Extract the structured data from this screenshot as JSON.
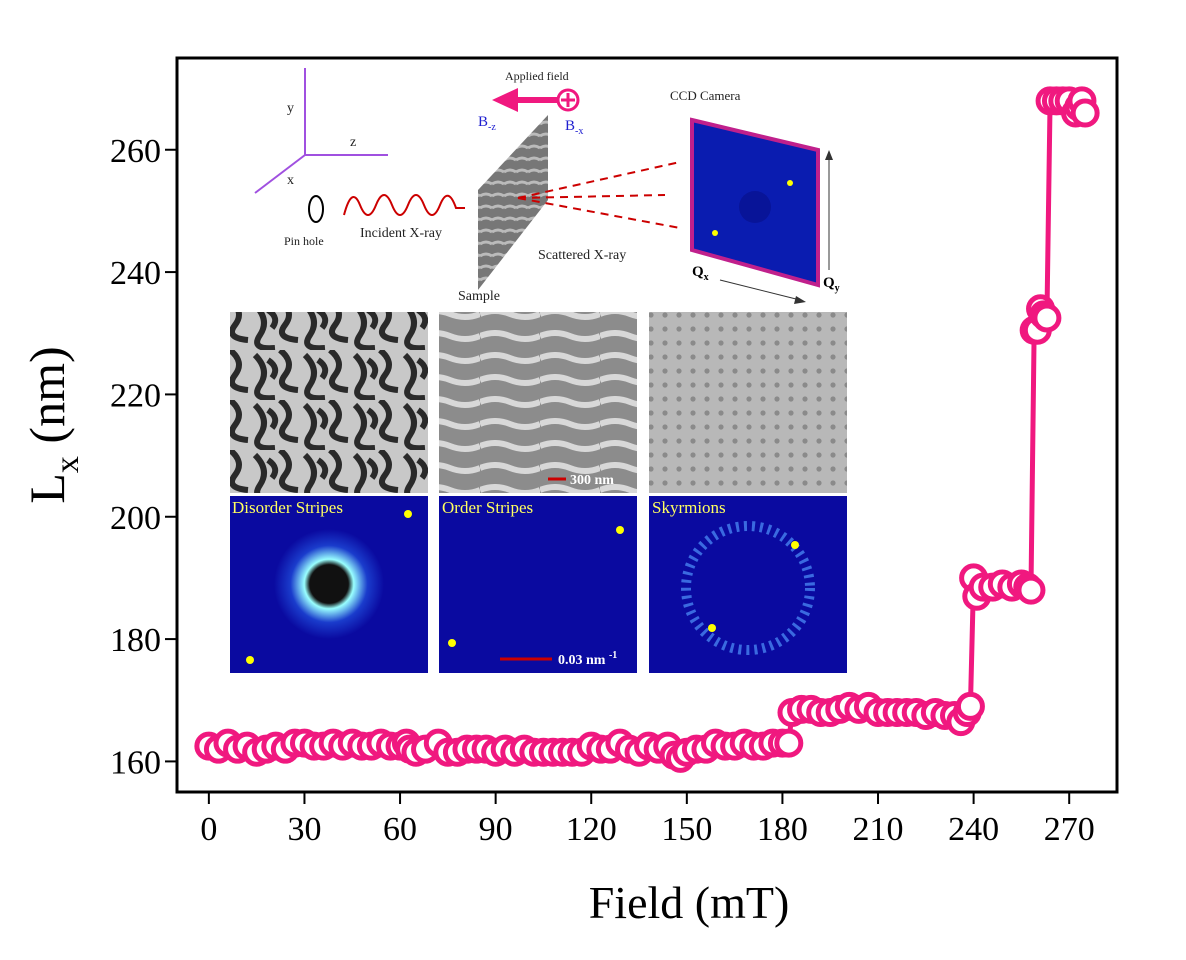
{
  "chart_data": {
    "type": "line",
    "x_label": "Field (mT)",
    "y_label": {
      "main": "L",
      "sub": "x",
      "unit": " (nm)"
    },
    "x": [
      0,
      3,
      6,
      9,
      12,
      15,
      18,
      21,
      24,
      27,
      30,
      33,
      36,
      39,
      42,
      45,
      48,
      51,
      54,
      57,
      60,
      62,
      63,
      65,
      68,
      72,
      75,
      78,
      81,
      84,
      87,
      90,
      93,
      96,
      99,
      102,
      105,
      108,
      111,
      114,
      117,
      120,
      123,
      126,
      129,
      132,
      135,
      138,
      141,
      144,
      146,
      148,
      150,
      153,
      156,
      159,
      162,
      165,
      168,
      171,
      174,
      177,
      180,
      182,
      183,
      186,
      189,
      192,
      195,
      198,
      201,
      204,
      207,
      210,
      213,
      216,
      219,
      222,
      225,
      228,
      231,
      234,
      236,
      238,
      239,
      240,
      241,
      243,
      246,
      249,
      252,
      255,
      257,
      258,
      259,
      260,
      261,
      262,
      263,
      264,
      266,
      268,
      270,
      272,
      273,
      274,
      275
    ],
    "series": [
      {
        "color": "#f0187f",
        "values": [
          162.5,
          162,
          163,
          162,
          162.5,
          161.5,
          162,
          162.5,
          162,
          163,
          163,
          162.5,
          162.5,
          163,
          162.5,
          163,
          162.5,
          162.5,
          163,
          162.5,
          162.5,
          163,
          162,
          161.5,
          162,
          163,
          161.5,
          161.5,
          162,
          162,
          162,
          161.5,
          162,
          161.5,
          162,
          161.5,
          161.5,
          161.5,
          161.5,
          161.5,
          161.5,
          162.5,
          162,
          162,
          163,
          162,
          161.5,
          162.5,
          162,
          162.5,
          161,
          160.5,
          161.5,
          162,
          162,
          163,
          162.5,
          162.5,
          163,
          162.5,
          162.5,
          163,
          163,
          163,
          168,
          168.5,
          168.5,
          168,
          168,
          168.5,
          169,
          168.5,
          169,
          168,
          168,
          168,
          168,
          168,
          167.5,
          168,
          167.5,
          167.5,
          166.5,
          168,
          169,
          190,
          187,
          188.5,
          188.5,
          189,
          188.5,
          189,
          188.5,
          188,
          230.5,
          230.5,
          234,
          233,
          232.5,
          268,
          268,
          268,
          268,
          266,
          267,
          268,
          266
        ]
      }
    ],
    "xlim": [
      -10,
      285
    ],
    "ylim": [
      155,
      275
    ],
    "xticks": [
      0,
      30,
      60,
      90,
      120,
      150,
      180,
      210,
      240,
      270
    ],
    "yticks": [
      160,
      180,
      200,
      220,
      240,
      260
    ],
    "annotations": [
      "y",
      "z",
      "x",
      "Pin hole",
      "Incident  X-ray",
      "Applied field",
      {
        "text": "B",
        "sub": "-z"
      },
      {
        "text": "B",
        "sub": "-x"
      },
      "Sample",
      "Scattered X-ray",
      "CCD Camera",
      {
        "text": "Q",
        "sub": "x"
      },
      {
        "text": "Q",
        "sub": "y"
      },
      "300 nm",
      "Disorder Stripes",
      "Order Stripes",
      "Skyrmions",
      {
        "text": "0.03 nm ",
        "sup": "-1"
      }
    ]
  }
}
